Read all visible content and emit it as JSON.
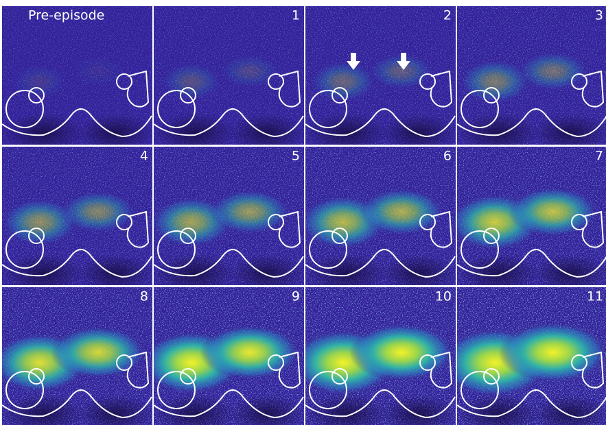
{
  "panels": [
    {
      "label": "Pre-episode"
    },
    {
      "label": "1"
    },
    {
      "label": "2"
    },
    {
      "label": "3"
    },
    {
      "label": "4"
    },
    {
      "label": "5"
    },
    {
      "label": "6"
    },
    {
      "label": "7"
    },
    {
      "label": "8"
    },
    {
      "label": "9"
    },
    {
      "label": "10"
    },
    {
      "label": "11"
    }
  ]
}
